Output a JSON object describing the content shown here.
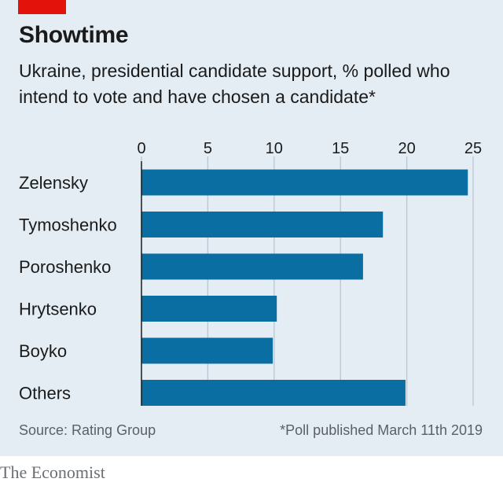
{
  "header": {
    "title": "Showtime",
    "subtitle": "Ukraine, presidential candidate support, % polled who intend to vote and have chosen a candidate*"
  },
  "footer": {
    "source": "Source: Rating Group",
    "footnote": "*Poll published March 11th 2019",
    "brand": "The Economist"
  },
  "colors": {
    "bar": "#0a6ea3",
    "grid": "#b7c6d2",
    "background": "#e4edf4",
    "accent": "#e3120b"
  },
  "chart_data": {
    "type": "bar",
    "orientation": "horizontal",
    "categories": [
      "Zelensky",
      "Tymoshenko",
      "Poroshenko",
      "Hrytsenko",
      "Boyko",
      "Others"
    ],
    "values": [
      24.6,
      18.2,
      16.7,
      10.2,
      9.9,
      19.9
    ],
    "xlim": [
      0,
      25
    ],
    "xticks": [
      0,
      5,
      10,
      15,
      20,
      25
    ],
    "grid": true,
    "axis_position": "top"
  }
}
